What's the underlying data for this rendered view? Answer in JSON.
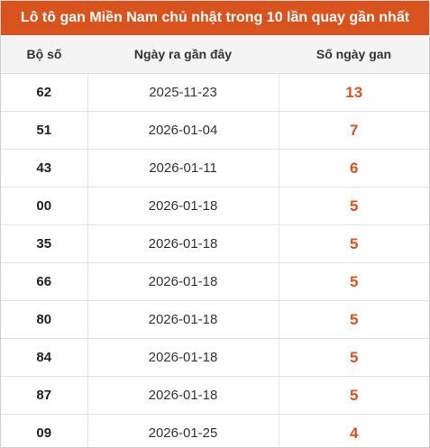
{
  "title": "Lô tô gan Miền Nam chủ nhật trong 10 lần quay gần nhất",
  "colors": {
    "header_bg": "#d9531e",
    "accent": "#d9531e"
  },
  "table": {
    "headers": [
      "Bộ số",
      "Ngày ra gần đây",
      "Số ngày gan"
    ],
    "rows": [
      {
        "number": "62",
        "date": "2025-11-23",
        "days": "13"
      },
      {
        "number": "51",
        "date": "2026-01-04",
        "days": "7"
      },
      {
        "number": "43",
        "date": "2026-01-11",
        "days": "6"
      },
      {
        "number": "00",
        "date": "2026-01-18",
        "days": "5"
      },
      {
        "number": "35",
        "date": "2026-01-18",
        "days": "5"
      },
      {
        "number": "66",
        "date": "2026-01-18",
        "days": "5"
      },
      {
        "number": "80",
        "date": "2026-01-18",
        "days": "5"
      },
      {
        "number": "84",
        "date": "2026-01-18",
        "days": "5"
      },
      {
        "number": "87",
        "date": "2026-01-18",
        "days": "5"
      },
      {
        "number": "09",
        "date": "2026-01-25",
        "days": "4"
      }
    ]
  }
}
